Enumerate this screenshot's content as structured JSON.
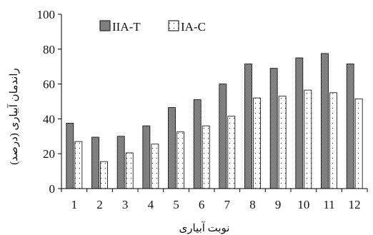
{
  "chart_data": {
    "type": "bar",
    "categories": [
      "1",
      "2",
      "3",
      "4",
      "5",
      "6",
      "7",
      "8",
      "9",
      "10",
      "11",
      "12"
    ],
    "series": [
      {
        "name": "IIA-T",
        "values": [
          37.5,
          29.5,
          30,
          36,
          46.5,
          51,
          60,
          71.5,
          69,
          75,
          77.5,
          71.5
        ],
        "pattern": "checker"
      },
      {
        "name": "IA-C",
        "values": [
          27,
          15.5,
          20.5,
          25.5,
          32.5,
          36,
          41.5,
          52,
          53,
          56.5,
          55,
          51.5
        ],
        "pattern": "dots"
      }
    ],
    "xlabel": "نوبت آبیاری",
    "ylabel": "راندمان آبیاری (درصد)",
    "ylim": [
      0,
      100
    ],
    "yticks": [
      0,
      20,
      40,
      60,
      80,
      100
    ],
    "legend_position": "top-left",
    "grid": false
  }
}
